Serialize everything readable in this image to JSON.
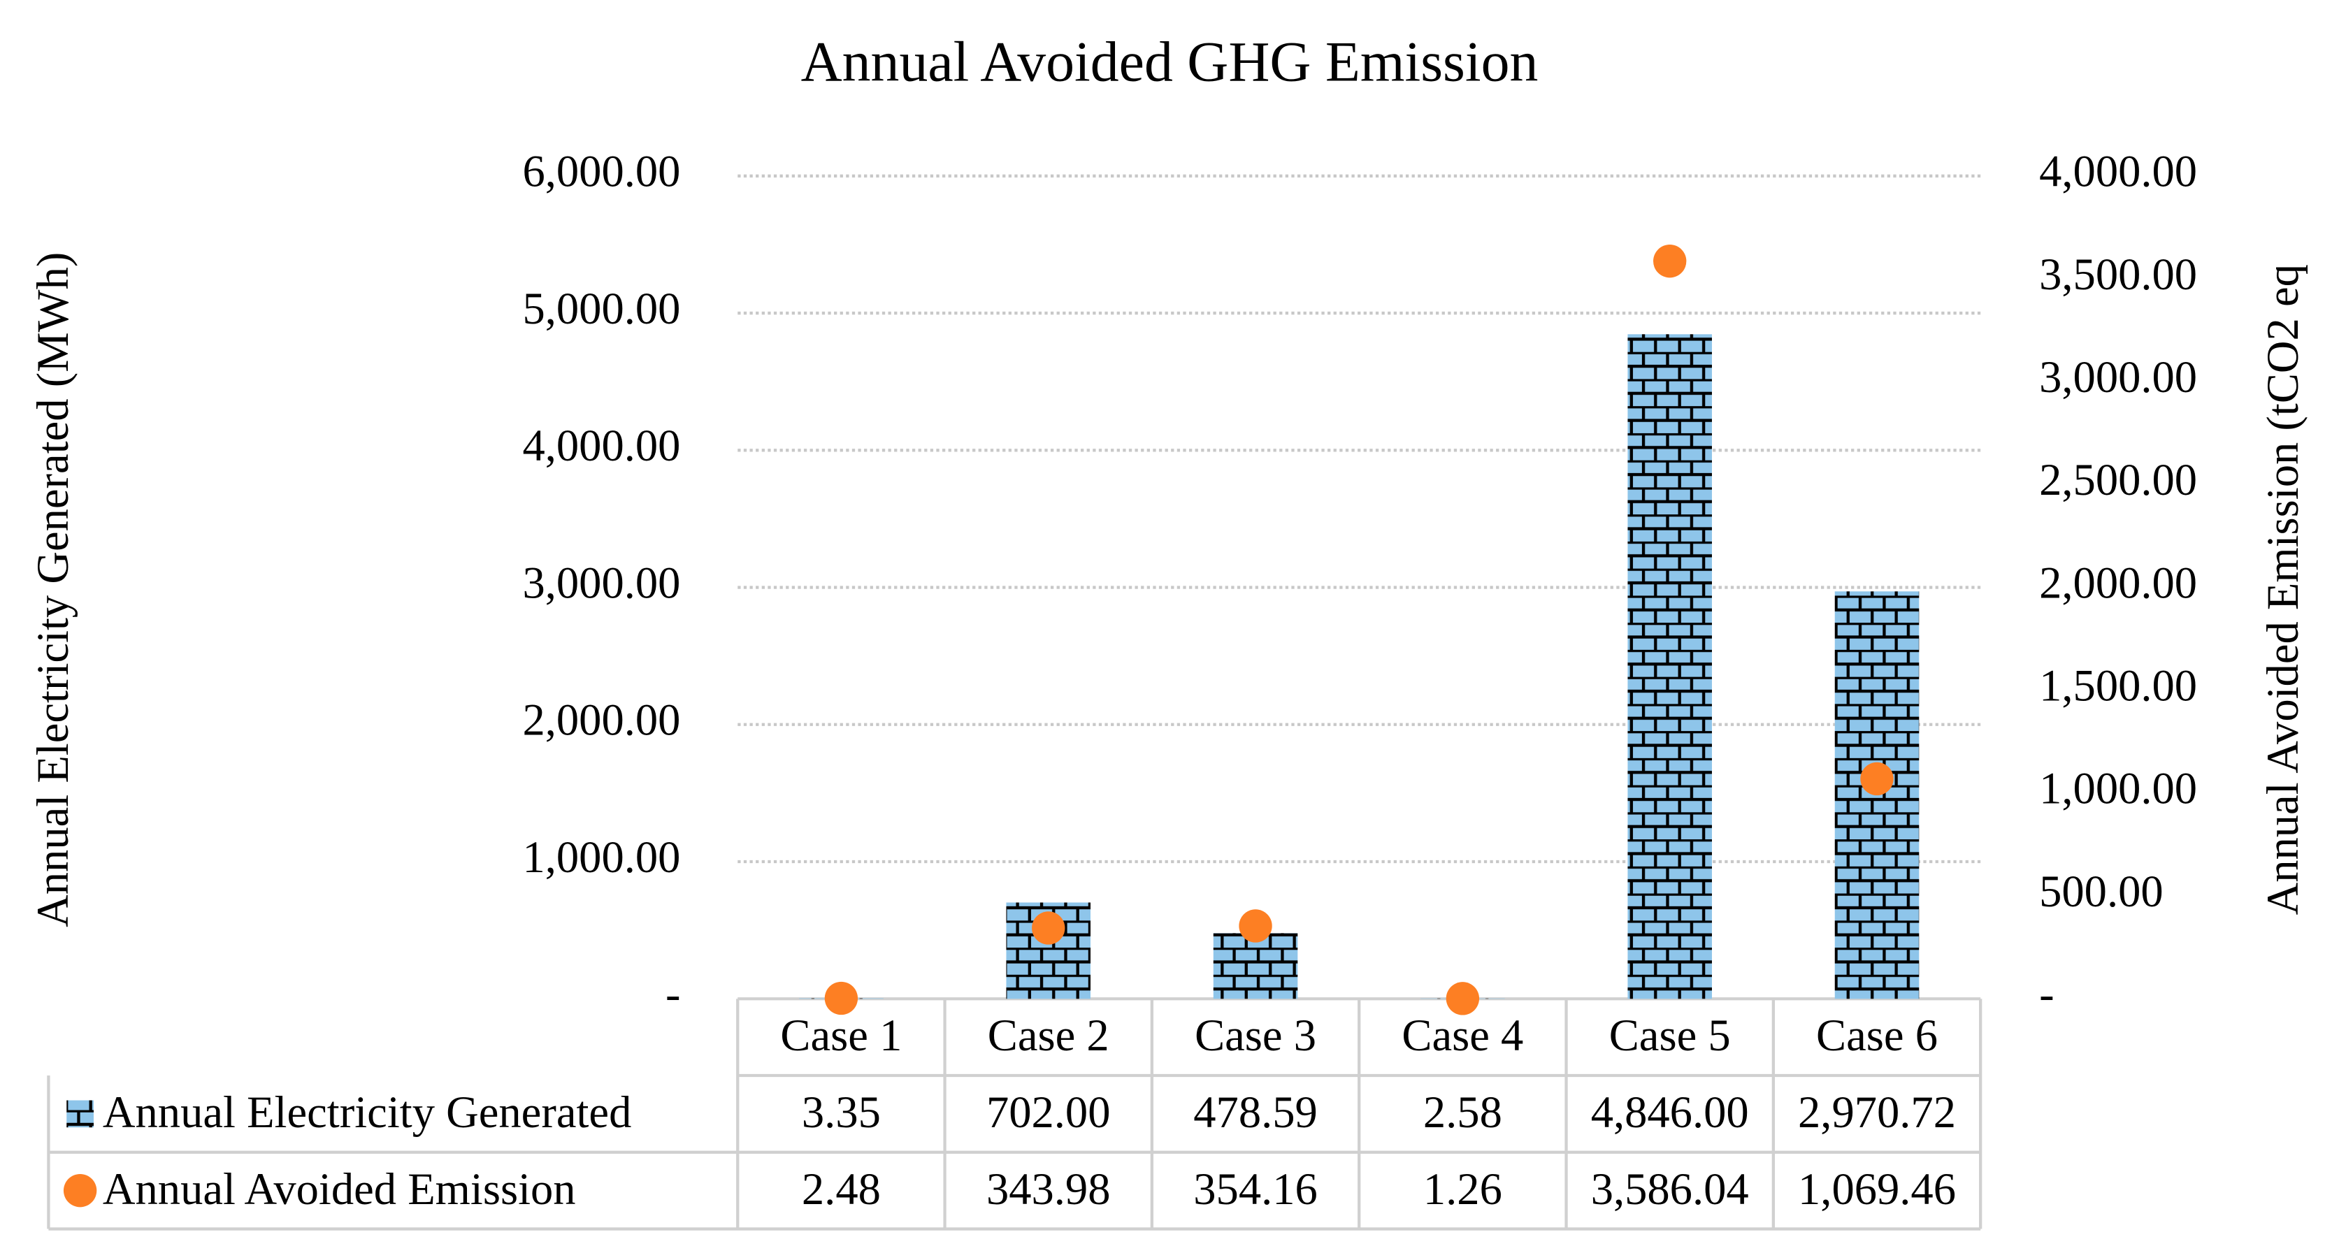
{
  "chart_data": {
    "type": "bar",
    "title": "Annual Avoided GHG Emission",
    "y_label": "Annual Electricity Generated (MWh)",
    "y2_label": "Annual Avoided Emission (tCO2 eq",
    "categories": [
      "Case 1",
      "Case 2",
      "Case 3",
      "Case 4",
      "Case 5",
      "Case 6"
    ],
    "series": [
      {
        "name": "Annual Electricity Generated",
        "type": "bar",
        "color": "#8ec5ea",
        "values": [
          3.35,
          702.0,
          478.59,
          2.58,
          4846.0,
          2970.72
        ],
        "value_labels": [
          "3.35",
          "702.00",
          "478.59",
          "2.58",
          "4,846.00",
          "2,970.72"
        ]
      },
      {
        "name": "Annual Avoided Emission",
        "type": "scatter",
        "axis": "y2",
        "color": "#fd7f23",
        "values": [
          2.48,
          343.98,
          354.16,
          1.26,
          3586.04,
          1069.46
        ],
        "value_labels": [
          "2.48",
          "343.98",
          "354.16",
          "1.26",
          "3,586.04",
          "1,069.46"
        ]
      }
    ],
    "ylim": [
      0,
      6000
    ],
    "yticks": [
      {
        "value": 0,
        "label": "-"
      },
      {
        "value": 1000,
        "label": "1,000.00"
      },
      {
        "value": 2000,
        "label": "2,000.00"
      },
      {
        "value": 3000,
        "label": "3,000.00"
      },
      {
        "value": 4000,
        "label": "4,000.00"
      },
      {
        "value": 5000,
        "label": "5,000.00"
      },
      {
        "value": 6000,
        "label": "6,000.00"
      }
    ],
    "y2lim": [
      0,
      4000
    ],
    "y2ticks": [
      {
        "value": 0,
        "label": "-"
      },
      {
        "value": 500,
        "label": "500.00"
      },
      {
        "value": 1000,
        "label": "1,000.00"
      },
      {
        "value": 1500,
        "label": "1,500.00"
      },
      {
        "value": 2000,
        "label": "2,000.00"
      },
      {
        "value": 2500,
        "label": "2,500.00"
      },
      {
        "value": 3000,
        "label": "3,000.00"
      },
      {
        "value": 3500,
        "label": "3,500.00"
      },
      {
        "value": 4000,
        "label": "4,000.00"
      }
    ],
    "grid": true,
    "data_table": true
  }
}
